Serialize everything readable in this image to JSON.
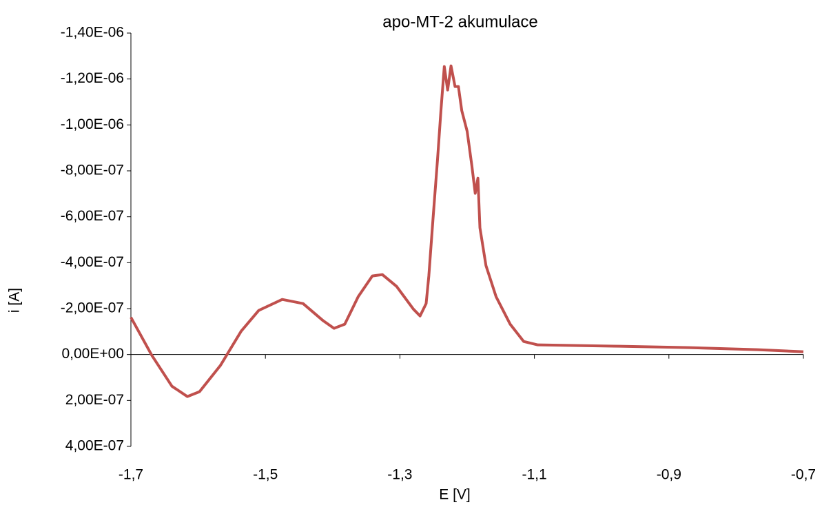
{
  "chart_data": {
    "type": "line",
    "title": "apo-MT-2 akumulace",
    "x_label": "E [V]",
    "y_label": "i [A]",
    "y_reversed": true,
    "xlim": [
      -1.7,
      -0.7
    ],
    "xticks": [
      {
        "value": -1.7,
        "label": "-1,7"
      },
      {
        "value": -1.5,
        "label": "-1,5"
      },
      {
        "value": -1.3,
        "label": "-1,3"
      },
      {
        "value": -1.1,
        "label": "-1,1"
      },
      {
        "value": -0.9,
        "label": "-0,9"
      },
      {
        "value": -0.7,
        "label": "-0,7"
      }
    ],
    "ylim": [
      -1.4e-06,
      4e-07
    ],
    "yticks": [
      {
        "value": -1.4e-06,
        "label": "-1,40E-06"
      },
      {
        "value": -1.2e-06,
        "label": "-1,20E-06"
      },
      {
        "value": -1e-06,
        "label": "-1,00E-06"
      },
      {
        "value": -8e-07,
        "label": "-8,00E-07"
      },
      {
        "value": -6e-07,
        "label": "-6,00E-07"
      },
      {
        "value": -4e-07,
        "label": "-4,00E-07"
      },
      {
        "value": -2e-07,
        "label": "-2,00E-07"
      },
      {
        "value": 0,
        "label": "0,00E+00"
      },
      {
        "value": 2e-07,
        "label": "2,00E-07"
      },
      {
        "value": 4e-07,
        "label": "4,00E-07"
      }
    ],
    "series": [
      {
        "color": "#c0504d",
        "x": [
          -1.7,
          -1.669,
          -1.639,
          -1.616,
          -1.598,
          -1.567,
          -1.536,
          -1.51,
          -1.475,
          -1.444,
          -1.414,
          -1.398,
          -1.382,
          -1.362,
          -1.341,
          -1.326,
          -1.305,
          -1.28,
          -1.27,
          -1.261,
          -1.257,
          -1.251,
          -1.244,
          -1.239,
          -1.234,
          -1.229,
          -1.224,
          -1.218,
          -1.213,
          -1.208,
          -1.2,
          -1.193,
          -1.188,
          -1.184,
          -1.181,
          -1.172,
          -1.157,
          -1.136,
          -1.116,
          -1.095,
          -0.973,
          -0.87,
          -0.768,
          -0.7
        ],
        "values": [
          -1.62e-07,
          3e-09,
          1.38e-07,
          1.83e-07,
          1.62e-07,
          4.8e-08,
          -1.02e-07,
          -1.92e-07,
          -2.4e-07,
          -2.22e-07,
          -1.47e-07,
          -1.14e-07,
          -1.32e-07,
          -2.52e-07,
          -3.42e-07,
          -3.48e-07,
          -2.97e-07,
          -1.98e-07,
          -1.68e-07,
          -2.22e-07,
          -3.42e-07,
          -5.82e-07,
          -8.52e-07,
          -1.062e-06,
          -1.254e-06,
          -1.152e-06,
          -1.257e-06,
          -1.167e-06,
          -1.167e-06,
          -1.062e-06,
          -9.72e-07,
          -8.22e-07,
          -7.02e-07,
          -7.68e-07,
          -5.52e-07,
          -3.87e-07,
          -2.52e-07,
          -1.32e-07,
          -5.7e-08,
          -4.2e-08,
          -3.6e-08,
          -3e-08,
          -2.1e-08,
          -1.2e-08
        ]
      }
    ]
  }
}
